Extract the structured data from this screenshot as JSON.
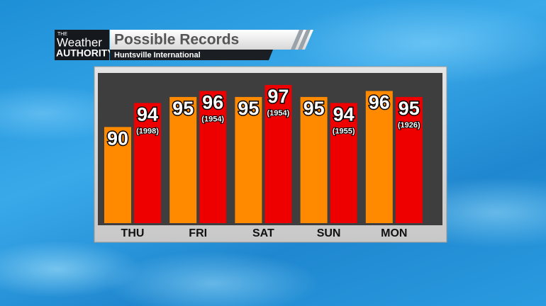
{
  "logo": {
    "line1": "THE",
    "line2": "Weather",
    "line3": "AUTHORITY"
  },
  "chart_data": {
    "type": "bar",
    "title": "Possible Records",
    "subtitle": "Huntsville International",
    "categories": [
      "THU",
      "FRI",
      "SAT",
      "SUN",
      "MON"
    ],
    "series": [
      {
        "color": "#ff8a00",
        "values": [
          90,
          95,
          95,
          95,
          96
        ]
      },
      {
        "color": "#ee0000",
        "values": [
          94,
          96,
          97,
          94,
          95
        ],
        "record_years": [
          "(1998)",
          "(1954)",
          "(1954)",
          "(1955)",
          "(1926)"
        ]
      }
    ],
    "ylim": [
      74,
      99
    ]
  }
}
